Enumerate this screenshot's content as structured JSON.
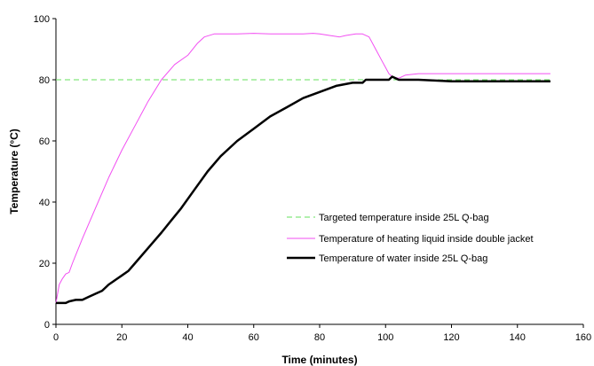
{
  "chart_data": {
    "type": "line",
    "xlabel": "Time (minutes)",
    "ylabel": "Temperature (°C)",
    "xlim": [
      0,
      160
    ],
    "ylim": [
      0,
      100
    ],
    "xticks": [
      "0",
      "20",
      "40",
      "60",
      "80",
      "100",
      "120",
      "140",
      "160"
    ],
    "yticks": [
      "0",
      "20",
      "40",
      "60",
      "80",
      "100"
    ],
    "grid": false,
    "legend_position": "right-center",
    "series": [
      {
        "name": "Targeted temperature inside 25L Q-bag",
        "color": "#66e05c",
        "style": "dashed",
        "x": [
          0,
          150
        ],
        "y": [
          80,
          80
        ]
      },
      {
        "name": "Temperature of heating liquid inside double jacket",
        "color": "#f24ff2",
        "style": "solid",
        "x": [
          0,
          1,
          2,
          3,
          4,
          5,
          8,
          12,
          16,
          20,
          24,
          28,
          32,
          36,
          40,
          43,
          45,
          48,
          55,
          60,
          65,
          70,
          75,
          78,
          80,
          83,
          86,
          88,
          91,
          93,
          95,
          97,
          99,
          100,
          101,
          102,
          104,
          106,
          110,
          120,
          130,
          140,
          150
        ],
        "y": [
          7,
          13,
          15,
          16.5,
          17,
          20,
          28,
          38,
          48,
          57,
          65,
          73,
          80,
          85,
          88,
          92,
          94,
          95,
          95,
          95.2,
          95,
          95,
          95,
          95.2,
          95,
          94.5,
          94,
          94.5,
          95,
          95,
          94,
          90,
          86,
          84,
          82,
          81,
          80.5,
          81.5,
          82,
          82,
          82,
          82,
          82
        ]
      },
      {
        "name": "Temperature of water inside 25L Q-bag",
        "color": "#000000",
        "style": "solid",
        "x": [
          0,
          2,
          3,
          4,
          6,
          8,
          10,
          12,
          14,
          16,
          18,
          20,
          22,
          24,
          28,
          32,
          35,
          38,
          42,
          46,
          50,
          55,
          60,
          65,
          70,
          75,
          80,
          85,
          90,
          93,
          94,
          95,
          98,
          100,
          101,
          102,
          103,
          104,
          105,
          110,
          120,
          130,
          140,
          150
        ],
        "y": [
          7,
          7,
          7,
          7.5,
          8,
          8,
          9,
          10,
          11,
          13,
          14.5,
          16,
          17.5,
          20,
          25,
          30,
          34,
          38,
          44,
          50,
          55,
          60,
          64,
          68,
          71,
          74,
          76,
          78,
          79,
          79,
          80,
          80,
          80,
          80,
          80,
          81,
          80.5,
          80,
          80,
          80,
          79.5,
          79.5,
          79.5,
          79.5
        ]
      }
    ]
  }
}
